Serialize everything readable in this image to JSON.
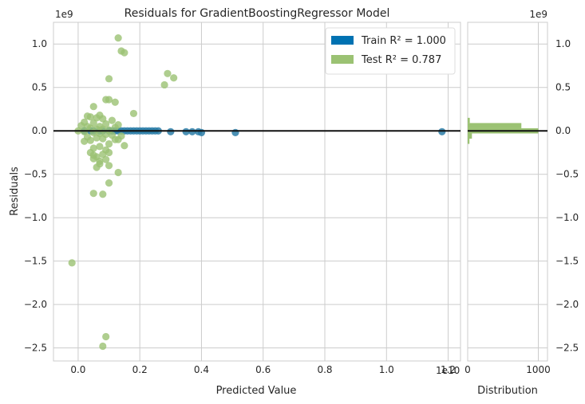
{
  "chart_data": {
    "type": "scatter",
    "title": "Residuals for GradientBoostingRegressor Model",
    "xlabel": "Predicted Value",
    "ylabel": "Residuals",
    "x_offset_label": "1e10",
    "y_offset_label": "1e9",
    "xlim": [
      -0.08,
      1.24
    ],
    "ylim": [
      -2.65,
      1.25
    ],
    "x_ticks": [
      0.0,
      0.2,
      0.4,
      0.6,
      0.8,
      1.0,
      1.2
    ],
    "x_tick_labels": [
      "0.0",
      "0.2",
      "0.4",
      "0.6",
      "0.8",
      "1.0",
      "1.2"
    ],
    "y_ticks": [
      1.0,
      0.5,
      0.0,
      -0.5,
      -1.0,
      -1.5,
      -2.0,
      -2.5
    ],
    "y_tick_labels": [
      "1.0",
      "0.5",
      "0.0",
      "−0.5",
      "−1.0",
      "−1.5",
      "−2.0",
      "−2.5"
    ],
    "grid": true,
    "legend_position": "top-right",
    "legend": [
      {
        "label": "Train R² = 1.000",
        "color": "#0072b2"
      },
      {
        "label": "Test R² = 0.787",
        "color": "#9bc273"
      }
    ],
    "zero_line": 0.0,
    "series": [
      {
        "name": "Train",
        "color": "#2b7ea8",
        "x": [
          0.05,
          0.07,
          0.1,
          0.12,
          0.14,
          0.16,
          0.18,
          0.2,
          0.22,
          0.24,
          0.26,
          0.3,
          0.35,
          0.37,
          0.39,
          0.4,
          0.51,
          1.18,
          0.02,
          0.04,
          0.08,
          0.11,
          0.13,
          0.15,
          0.17,
          0.19,
          0.21,
          0.23,
          0.25
        ],
        "y": [
          0.0,
          0.0,
          0.0,
          0.0,
          0.0,
          0.0,
          0.0,
          0.0,
          0.0,
          0.0,
          0.0,
          -0.01,
          -0.01,
          -0.01,
          -0.01,
          -0.02,
          -0.02,
          -0.01,
          0.0,
          0.0,
          0.0,
          0.0,
          0.0,
          0.0,
          0.0,
          0.0,
          0.0,
          0.0,
          0.0
        ]
      },
      {
        "name": "Test",
        "color": "#9bc273",
        "x": [
          0.13,
          0.14,
          0.15,
          0.1,
          0.29,
          0.28,
          0.31,
          0.09,
          0.1,
          0.05,
          0.12,
          0.18,
          0.07,
          0.03,
          0.04,
          0.06,
          0.08,
          0.11,
          0.02,
          0.05,
          0.09,
          0.13,
          0.01,
          0.03,
          0.07,
          0.12,
          0.04,
          0.06,
          0.08,
          0.1,
          0.0,
          0.02,
          0.05,
          0.07,
          0.09,
          0.11,
          0.14,
          0.03,
          0.06,
          0.08,
          0.12,
          0.04,
          0.02,
          0.1,
          0.07,
          0.05,
          0.09,
          0.15,
          0.13,
          0.08,
          0.06,
          0.05,
          0.04,
          0.09,
          0.07,
          0.1,
          0.06,
          0.05,
          0.13,
          0.1,
          0.08,
          0.07,
          0.05,
          0.1,
          -0.02,
          0.09,
          0.08
        ],
        "y": [
          1.07,
          0.92,
          0.9,
          0.6,
          0.66,
          0.53,
          0.61,
          0.36,
          0.36,
          0.28,
          0.33,
          0.2,
          0.18,
          0.17,
          0.16,
          0.15,
          0.14,
          0.12,
          0.1,
          0.09,
          0.08,
          0.07,
          0.06,
          0.05,
          0.05,
          0.04,
          0.03,
          0.02,
          0.02,
          0.01,
          0.0,
          -0.01,
          -0.02,
          -0.03,
          -0.04,
          -0.05,
          -0.06,
          -0.07,
          -0.08,
          -0.09,
          -0.1,
          -0.11,
          -0.12,
          -0.15,
          -0.18,
          -0.2,
          -0.22,
          -0.17,
          -0.1,
          -0.27,
          -0.3,
          -0.32,
          -0.25,
          -0.33,
          -0.38,
          -0.4,
          -0.42,
          -0.72,
          -0.48,
          -0.6,
          -0.73,
          -0.35,
          -0.28,
          -0.25,
          -1.52,
          -2.37,
          -2.48
        ]
      }
    ],
    "distribution": {
      "xlabel": "Distribution",
      "xlim": [
        0,
        1130
      ],
      "x_ticks": [
        0,
        1000
      ],
      "x_tick_labels": [
        "0",
        "1000"
      ],
      "bins": [
        {
          "center": 0.12,
          "count": 30,
          "color": "#9bc273"
        },
        {
          "center": 0.06,
          "count": 760,
          "color": "#9bc273"
        },
        {
          "center": 0.0,
          "count": 1000,
          "color": "#9bc273"
        },
        {
          "center": -0.06,
          "count": 60,
          "color": "#9bc273"
        },
        {
          "center": -0.12,
          "count": 25,
          "color": "#9bc273"
        }
      ],
      "bin_height": 0.06
    }
  }
}
